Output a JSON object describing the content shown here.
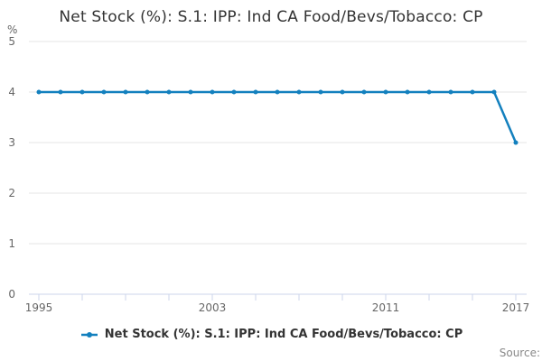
{
  "header": {
    "title": "Net Stock (%): S.1: IPP: Ind CA Food/Bevs/Tobacco: CP"
  },
  "legend": {
    "label": "Net Stock (%): S.1: IPP: Ind CA Food/Bevs/Tobacco: CP"
  },
  "footer": {
    "source_label": "Source:"
  },
  "colors": {
    "series_line": "#1380be",
    "gridline": "#e6e6e6",
    "axis_line": "#ccd6eb",
    "tick_label": "#666666",
    "title_text": "#333333",
    "legend_text": "#333333",
    "source_text": "#888888",
    "background": "#ffffff"
  },
  "chart_data": {
    "type": "line",
    "title": "Net Stock (%): S.1: IPP: Ind CA Food/Bevs/Tobacco: CP",
    "xlabel": "",
    "ylabel": "%",
    "ylim": [
      0,
      5
    ],
    "y_ticks": [
      5,
      4,
      3,
      2,
      1,
      0
    ],
    "grid": "horizontal-on",
    "legend_position": "bottom",
    "x": [
      1995,
      1996,
      1997,
      1998,
      1999,
      2000,
      2001,
      2002,
      2003,
      2004,
      2005,
      2006,
      2007,
      2008,
      2009,
      2010,
      2011,
      2012,
      2013,
      2014,
      2015,
      2016,
      2017
    ],
    "x_axis_ticks": [
      1995,
      1997,
      1999,
      2001,
      2003,
      2005,
      2007,
      2009,
      2011,
      2013,
      2015,
      2017
    ],
    "x_labeled_ticks": [
      1995,
      2003,
      2011,
      2017
    ],
    "series": [
      {
        "name": "Net Stock (%): S.1: IPP: Ind CA Food/Bevs/Tobacco: CP",
        "values": [
          4,
          4,
          4,
          4,
          4,
          4,
          4,
          4,
          4,
          4,
          4,
          4,
          4,
          4,
          4,
          4,
          4,
          4,
          4,
          4,
          4,
          4,
          3
        ]
      }
    ]
  }
}
